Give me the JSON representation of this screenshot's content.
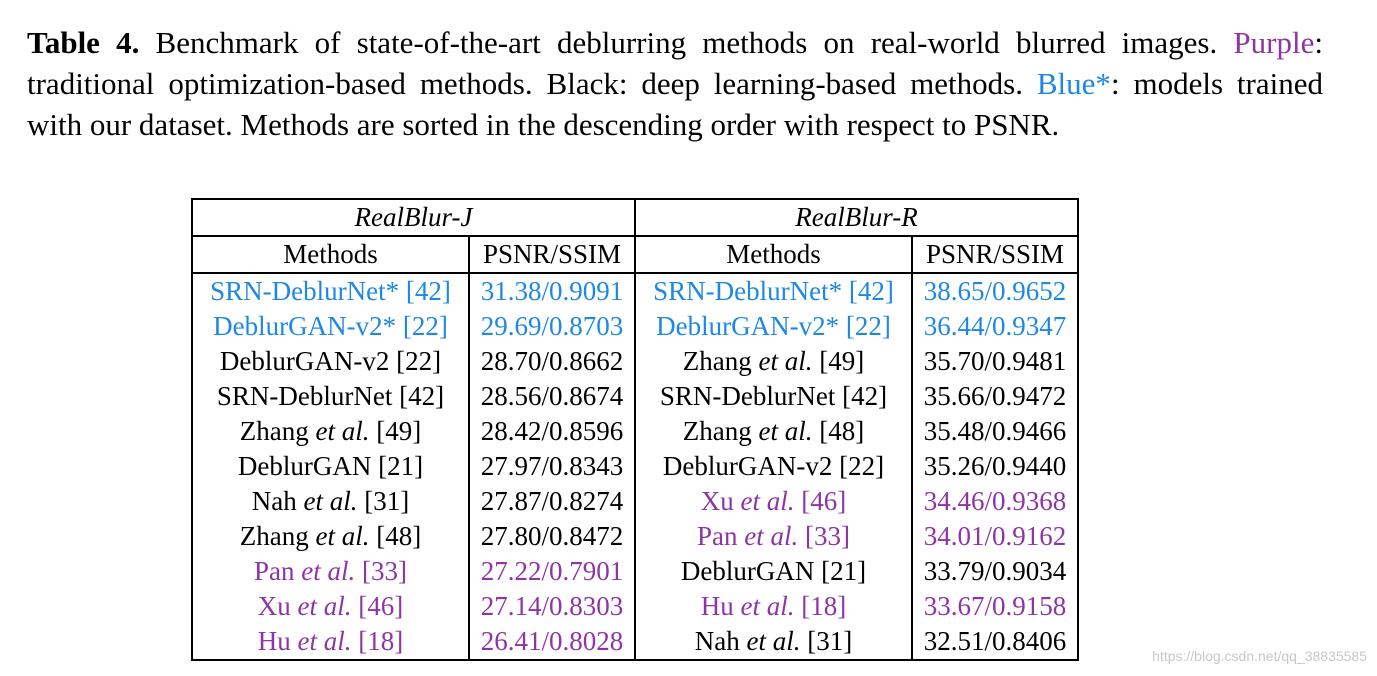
{
  "caption": {
    "label": "Table 4.",
    "text_1": " Benchmark of state-of-the-art deblurring methods on real-world blurred images. ",
    "purple_word": "Purple",
    "text_2": ": traditional optimization-based methods. Black: deep learning-based methods. ",
    "blue_word": "Blue*",
    "text_3": ": models trained with our dataset. Methods are sorted in the descending order with respect to PSNR."
  },
  "colors": {
    "blue": "#1e88e5",
    "purple": "#8e35a6",
    "black": "#000000"
  },
  "table": {
    "groups": [
      "RealBlur-J",
      "RealBlur-R"
    ],
    "headers": [
      "Methods",
      "PSNR/SSIM",
      "Methods",
      "PSNR/SSIM"
    ],
    "rows": [
      {
        "left": {
          "method": "SRN-DeblurNet* [42]",
          "value": "31.38/0.9091",
          "color": "blue"
        },
        "right": {
          "method": "SRN-DeblurNet* [42]",
          "value": "38.65/0.9652",
          "color": "blue"
        }
      },
      {
        "left": {
          "method": "DeblurGAN-v2* [22]",
          "value": "29.69/0.8703",
          "color": "blue"
        },
        "right": {
          "method": "DeblurGAN-v2* [22]",
          "value": "36.44/0.9347",
          "color": "blue"
        }
      },
      {
        "left": {
          "method": "DeblurGAN-v2 [22]",
          "value": "28.70/0.8662",
          "color": "black"
        },
        "right": {
          "name": "Zhang",
          "etal": "et al.",
          "ref": "[49]",
          "value": "35.70/0.9481",
          "color": "black"
        }
      },
      {
        "left": {
          "method": "SRN-DeblurNet [42]",
          "value": "28.56/0.8674",
          "color": "black"
        },
        "right": {
          "method": "SRN-DeblurNet [42]",
          "value": "35.66/0.9472",
          "color": "black"
        }
      },
      {
        "left": {
          "name": "Zhang",
          "etal": "et al.",
          "ref": "[49]",
          "value": "28.42/0.8596",
          "color": "black"
        },
        "right": {
          "name": "Zhang",
          "etal": "et al.",
          "ref": "[48]",
          "value": "35.48/0.9466",
          "color": "black"
        }
      },
      {
        "left": {
          "method": "DeblurGAN [21]",
          "value": "27.97/0.8343",
          "color": "black"
        },
        "right": {
          "method": "DeblurGAN-v2 [22]",
          "value": "35.26/0.9440",
          "color": "black"
        }
      },
      {
        "left": {
          "name": "Nah",
          "etal": "et al.",
          "ref": "[31]",
          "value": "27.87/0.8274",
          "color": "black"
        },
        "right": {
          "name": "Xu",
          "etal": "et al.",
          "ref": "[46]",
          "value": "34.46/0.9368",
          "color": "purple"
        }
      },
      {
        "left": {
          "name": "Zhang",
          "etal": "et al.",
          "ref": "[48]",
          "value": "27.80/0.8472",
          "color": "black"
        },
        "right": {
          "name": "Pan",
          "etal": "et al.",
          "ref": "[33]",
          "value": "34.01/0.9162",
          "color": "purple"
        }
      },
      {
        "left": {
          "name": "Pan",
          "etal": "et al.",
          "ref": "[33]",
          "value": "27.22/0.7901",
          "color": "purple"
        },
        "right": {
          "method": "DeblurGAN [21]",
          "value": "33.79/0.9034",
          "color": "black"
        }
      },
      {
        "left": {
          "name": "Xu",
          "etal": "et al.",
          "ref": "[46]",
          "value": "27.14/0.8303",
          "color": "purple"
        },
        "right": {
          "name": "Hu",
          "etal": "et al.",
          "ref": "[18]",
          "value": "33.67/0.9158",
          "color": "purple"
        }
      },
      {
        "left": {
          "name": "Hu",
          "etal": "et al.",
          "ref": "[18]",
          "value": "26.41/0.8028",
          "color": "purple"
        },
        "right": {
          "name": "Nah",
          "etal": "et al.",
          "ref": "[31]",
          "value": "32.51/0.8406",
          "color": "black"
        }
      }
    ]
  },
  "watermark": "https://blog.csdn.net/qq_38835585"
}
